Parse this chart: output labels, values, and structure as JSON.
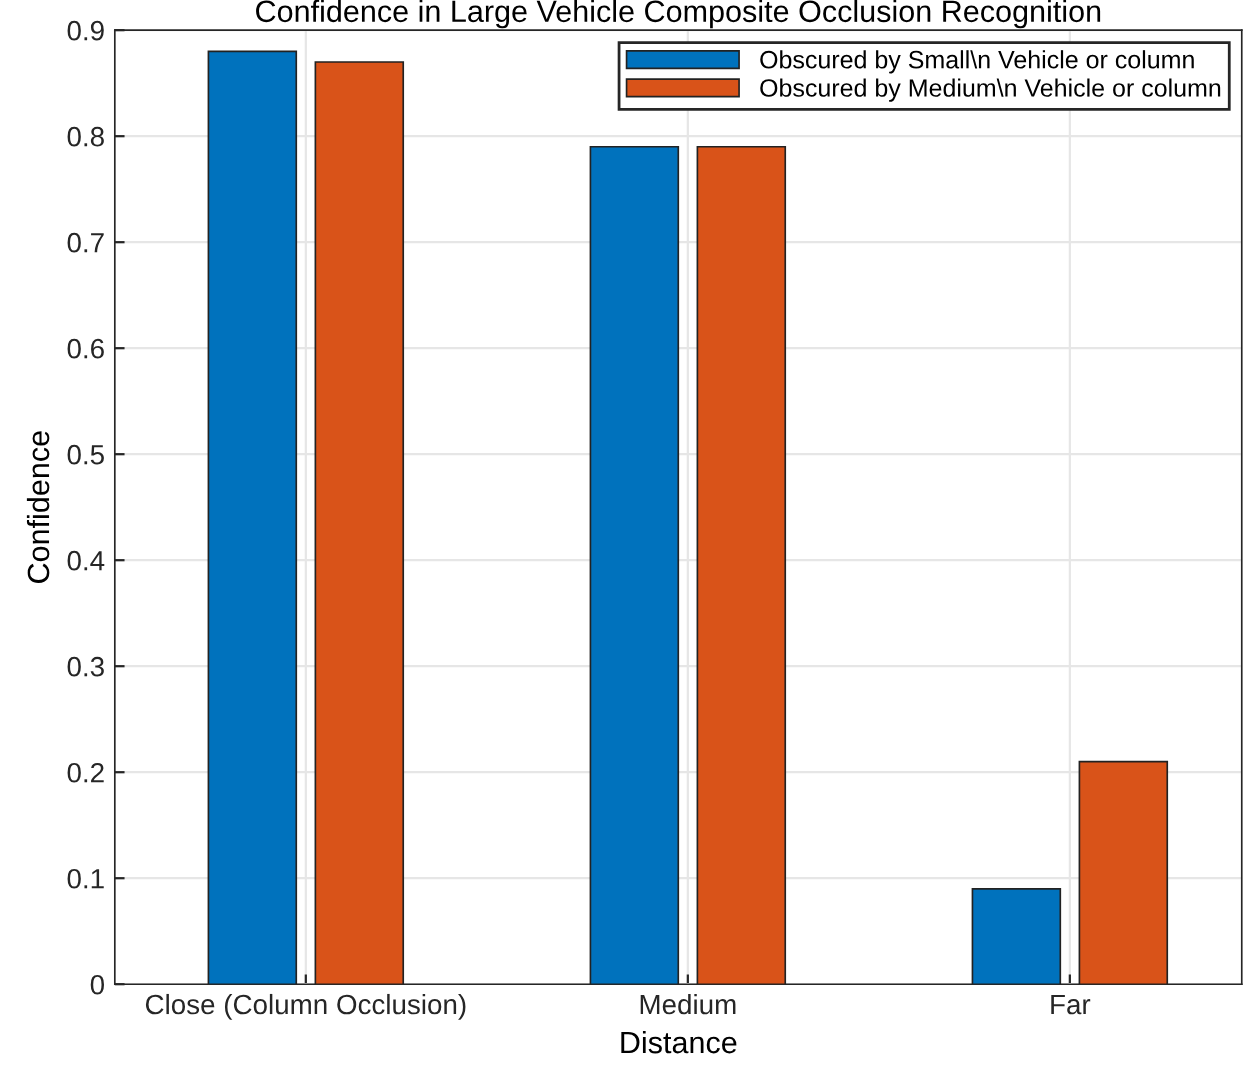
{
  "chart_data": {
    "type": "bar",
    "title": "Confidence in Large Vehicle Composite Occlusion Recognition",
    "xlabel": "Distance",
    "ylabel": "Confidence",
    "categories": [
      "Close (Column Occlusion)",
      "Medium",
      "Far"
    ],
    "series": [
      {
        "name": "Obscured by Small\\n Vehicle or column",
        "color": "#0072bd",
        "values": [
          0.88,
          0.79,
          0.09
        ]
      },
      {
        "name": "Obscured by Medium\\n Vehicle or column",
        "color": "#d95319",
        "values": [
          0.87,
          0.79,
          0.21
        ]
      }
    ],
    "ylim": [
      0,
      0.9
    ],
    "yticks": [
      0,
      0.1,
      0.2,
      0.3,
      0.4,
      0.5,
      0.6,
      0.7,
      0.8,
      0.9
    ],
    "grid": true,
    "legend": "top right"
  }
}
